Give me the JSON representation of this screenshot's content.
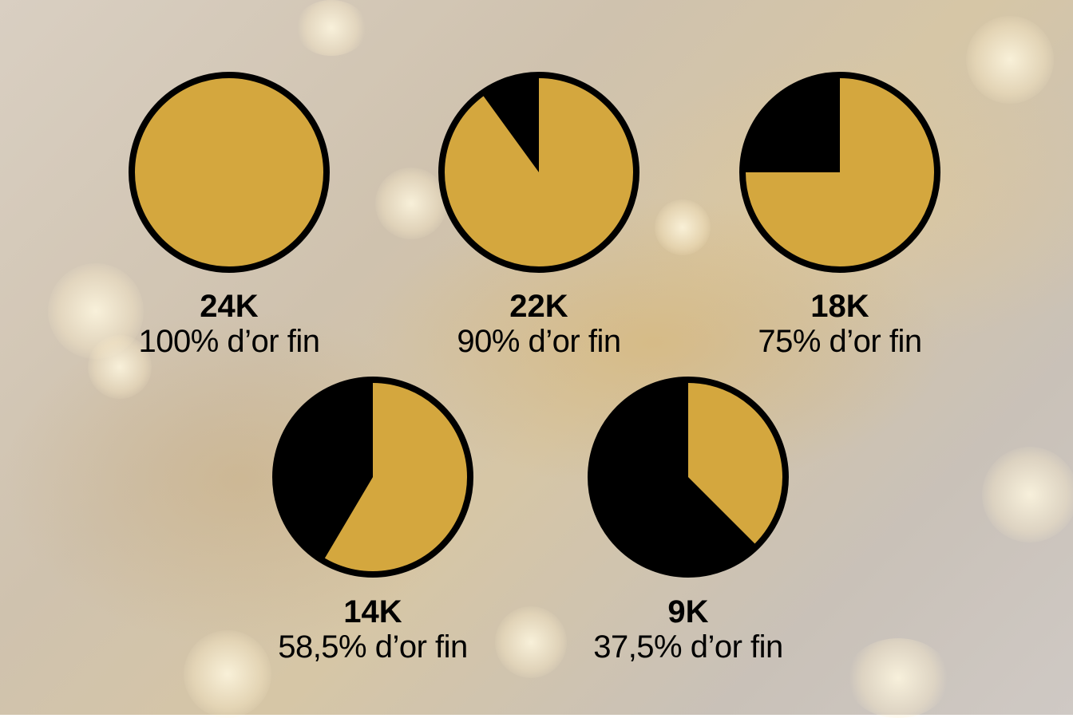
{
  "chart_data": {
    "type": "pie",
    "colors": {
      "gold": "#d4a73e",
      "rest": "#000000",
      "outline": "#000000"
    },
    "pies": [
      {
        "label": "24K",
        "caption": "100% d’or fin",
        "value": 100
      },
      {
        "label": "22K",
        "caption": "90% d’or fin",
        "value": 90
      },
      {
        "label": "18K",
        "caption": "75% d’or fin",
        "value": 75
      },
      {
        "label": "14K",
        "caption": "58,5% d’or fin",
        "value": 58.5
      },
      {
        "label": "9K",
        "caption": "37,5% d’or fin",
        "value": 37.5
      }
    ]
  }
}
